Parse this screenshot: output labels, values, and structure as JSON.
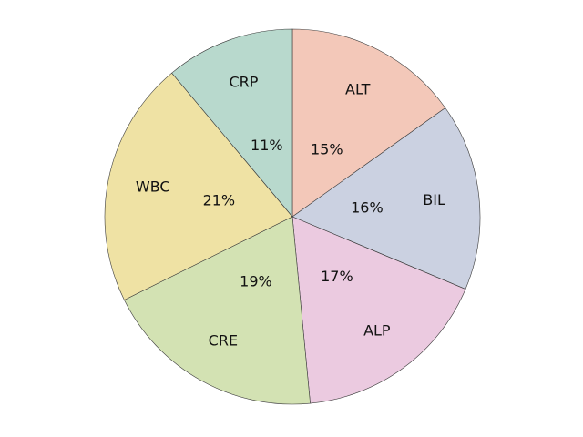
{
  "chart_data": {
    "type": "pie",
    "title": "",
    "start_angle_deg": 90,
    "direction": "clockwise",
    "slices": [
      {
        "label": "ALT",
        "value": 15,
        "pct_label": "15%",
        "color": "#f3c8b9"
      },
      {
        "label": "BIL",
        "value": 16,
        "pct_label": "16%",
        "color": "#cbd1e1"
      },
      {
        "label": "ALP",
        "value": 17,
        "pct_label": "17%",
        "color": "#ebcae0"
      },
      {
        "label": "CRE",
        "value": 19,
        "pct_label": "19%",
        "color": "#d3e2b3"
      },
      {
        "label": "WBC",
        "value": 21,
        "pct_label": "21%",
        "color": "#efe2a4"
      },
      {
        "label": "CRP",
        "value": 11,
        "pct_label": "11%",
        "color": "#b8d9cd"
      }
    ]
  }
}
